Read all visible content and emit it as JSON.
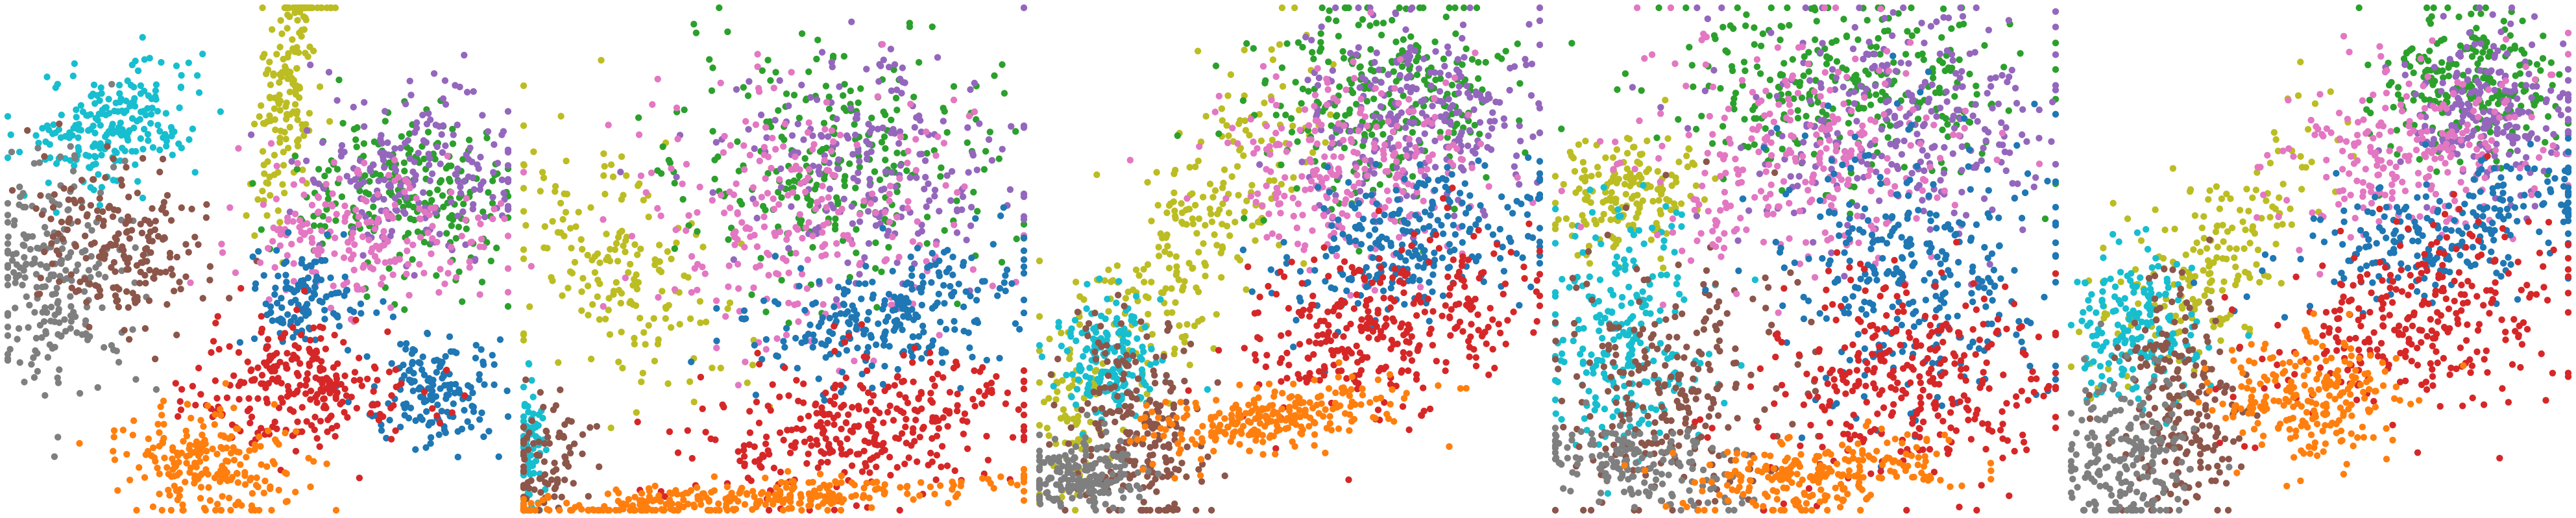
{
  "palette": {
    "c0": "#1f77b4",
    "c1": "#ff7f0e",
    "c2": "#2ca02c",
    "c3": "#d62728",
    "c4": "#9467bd",
    "c5": "#8c564b",
    "c6": "#e377c2",
    "c7": "#7f7f7f",
    "c8": "#bcbd22",
    "c9": "#17becf"
  },
  "chart_data": [
    {
      "type": "scatter",
      "axes_visible": false,
      "legend": "none",
      "xlim": [
        0,
        100
      ],
      "ylim": [
        0,
        100
      ],
      "clusters": [
        {
          "color_key": "c9",
          "center": [
            22,
            77
          ],
          "spread": [
            9,
            6
          ],
          "count": 220,
          "angle": 25
        },
        {
          "color_key": "c7",
          "center": [
            10,
            45
          ],
          "spread": [
            7,
            12
          ],
          "count": 230,
          "angle": 0
        },
        {
          "color_key": "c5",
          "center": [
            23,
            53
          ],
          "spread": [
            9,
            8
          ],
          "count": 200,
          "angle": -20
        },
        {
          "color_key": "c8",
          "center": [
            56,
            84
          ],
          "spread": [
            3,
            14
          ],
          "count": 170,
          "angle": -5
        },
        {
          "color_key": "c2",
          "center": [
            80,
            62
          ],
          "spread": [
            13,
            9
          ],
          "count": 230,
          "angle": 0
        },
        {
          "color_key": "c4",
          "center": [
            82,
            68
          ],
          "spread": [
            11,
            9
          ],
          "count": 200,
          "angle": 0
        },
        {
          "color_key": "c6",
          "center": [
            72,
            55
          ],
          "spread": [
            13,
            7
          ],
          "count": 200,
          "angle": 0
        },
        {
          "color_key": "c0",
          "center": [
            60,
            42
          ],
          "spread": [
            6,
            5
          ],
          "count": 120,
          "angle": 0
        },
        {
          "color_key": "c0",
          "center": [
            86,
            24
          ],
          "spread": [
            7,
            5
          ],
          "count": 160,
          "angle": 0
        },
        {
          "color_key": "c3",
          "center": [
            58,
            25
          ],
          "spread": [
            11,
            6
          ],
          "count": 260,
          "angle": 0
        },
        {
          "color_key": "c1",
          "center": [
            40,
            9
          ],
          "spread": [
            9,
            6
          ],
          "count": 220,
          "angle": -10
        }
      ]
    },
    {
      "type": "scatter",
      "axes_visible": false,
      "legend": "none",
      "xlim": [
        0,
        100
      ],
      "ylim": [
        0,
        100
      ],
      "clusters": [
        {
          "color_key": "c8",
          "center": [
            18,
            50
          ],
          "spread": [
            9,
            14
          ],
          "count": 180,
          "angle": 35
        },
        {
          "color_key": "c9",
          "center": [
            1,
            11
          ],
          "spread": [
            1.5,
            7
          ],
          "count": 80,
          "angle": 0
        },
        {
          "color_key": "c5",
          "center": [
            5,
            10
          ],
          "spread": [
            4,
            6
          ],
          "count": 90,
          "angle": 0
        },
        {
          "color_key": "c2",
          "center": [
            64,
            70
          ],
          "spread": [
            16,
            12
          ],
          "count": 260,
          "angle": 10
        },
        {
          "color_key": "c4",
          "center": [
            72,
            70
          ],
          "spread": [
            14,
            12
          ],
          "count": 220,
          "angle": 10
        },
        {
          "color_key": "c6",
          "center": [
            56,
            57
          ],
          "spread": [
            17,
            13
          ],
          "count": 260,
          "angle": 15
        },
        {
          "color_key": "c0",
          "center": [
            72,
            39
          ],
          "spread": [
            16,
            6
          ],
          "count": 260,
          "angle": 15
        },
        {
          "color_key": "c3",
          "center": [
            67,
            17
          ],
          "spread": [
            18,
            7
          ],
          "count": 330,
          "angle": 12
        },
        {
          "color_key": "c1",
          "center": [
            42,
            2
          ],
          "spread": [
            28,
            1.8
          ],
          "count": 300,
          "angle": 3
        }
      ]
    },
    {
      "type": "scatter",
      "axes_visible": false,
      "legend": "none",
      "xlim": [
        0,
        100
      ],
      "ylim": [
        0,
        100
      ],
      "clusters": [
        {
          "color_key": "c8",
          "center": [
            30,
            55
          ],
          "spread": [
            8,
            20
          ],
          "count": 260,
          "angle": -35
        },
        {
          "color_key": "c8",
          "center": [
            7,
            18
          ],
          "spread": [
            3,
            8
          ],
          "count": 60,
          "angle": 0
        },
        {
          "color_key": "c9",
          "center": [
            14,
            30
          ],
          "spread": [
            5,
            6
          ],
          "count": 170,
          "angle": 0
        },
        {
          "color_key": "c5",
          "center": [
            20,
            15
          ],
          "spread": [
            6,
            11
          ],
          "count": 230,
          "angle": 10
        },
        {
          "color_key": "c7",
          "center": [
            9,
            7
          ],
          "spread": [
            6,
            4
          ],
          "count": 180,
          "angle": 0
        },
        {
          "color_key": "c2",
          "center": [
            68,
            82
          ],
          "spread": [
            13,
            10
          ],
          "count": 280,
          "angle": 10
        },
        {
          "color_key": "c4",
          "center": [
            76,
            78
          ],
          "spread": [
            12,
            10
          ],
          "count": 260,
          "angle": 10
        },
        {
          "color_key": "c6",
          "center": [
            62,
            67
          ],
          "spread": [
            14,
            10
          ],
          "count": 260,
          "angle": 10
        },
        {
          "color_key": "c0",
          "center": [
            76,
            53
          ],
          "spread": [
            14,
            7
          ],
          "count": 260,
          "angle": 15
        },
        {
          "color_key": "c3",
          "center": [
            70,
            36
          ],
          "spread": [
            15,
            8
          ],
          "count": 320,
          "angle": 15
        },
        {
          "color_key": "c1",
          "center": [
            47,
            18
          ],
          "spread": [
            13,
            3
          ],
          "count": 250,
          "angle": 8
        }
      ]
    },
    {
      "type": "scatter",
      "axes_visible": false,
      "legend": "none",
      "xlim": [
        0,
        100
      ],
      "ylim": [
        0,
        100
      ],
      "clusters": [
        {
          "color_key": "c8",
          "center": [
            15,
            62
          ],
          "spread": [
            7,
            6
          ],
          "count": 170,
          "angle": 20
        },
        {
          "color_key": "c9",
          "center": [
            14,
            35
          ],
          "spread": [
            8,
            12
          ],
          "count": 240,
          "angle": 0
        },
        {
          "color_key": "c5",
          "center": [
            24,
            25
          ],
          "spread": [
            10,
            14
          ],
          "count": 260,
          "angle": -20
        },
        {
          "color_key": "c7",
          "center": [
            16,
            9
          ],
          "spread": [
            10,
            4
          ],
          "count": 170,
          "angle": -10
        },
        {
          "color_key": "c2",
          "center": [
            57,
            84
          ],
          "spread": [
            18,
            10
          ],
          "count": 300,
          "angle": 0
        },
        {
          "color_key": "c4",
          "center": [
            70,
            78
          ],
          "spread": [
            16,
            12
          ],
          "count": 280,
          "angle": 0
        },
        {
          "color_key": "c6",
          "center": [
            48,
            70
          ],
          "spread": [
            16,
            12
          ],
          "count": 280,
          "angle": 0
        },
        {
          "color_key": "c0",
          "center": [
            72,
            47
          ],
          "spread": [
            14,
            14
          ],
          "count": 320,
          "angle": 0
        },
        {
          "color_key": "c3",
          "center": [
            72,
            25
          ],
          "spread": [
            14,
            10
          ],
          "count": 330,
          "angle": 0
        },
        {
          "color_key": "c1",
          "center": [
            54,
            7
          ],
          "spread": [
            13,
            4
          ],
          "count": 240,
          "angle": 5
        }
      ]
    },
    {
      "type": "scatter",
      "axes_visible": false,
      "legend": "none",
      "xlim": [
        0,
        100
      ],
      "ylim": [
        0,
        100
      ],
      "clusters": [
        {
          "color_key": "c8",
          "center": [
            28,
            50
          ],
          "spread": [
            7,
            15
          ],
          "count": 200,
          "angle": -40
        },
        {
          "color_key": "c9",
          "center": [
            13,
            36
          ],
          "spread": [
            6,
            7
          ],
          "count": 180,
          "angle": 0
        },
        {
          "color_key": "c5",
          "center": [
            22,
            20
          ],
          "spread": [
            6,
            12
          ],
          "count": 220,
          "angle": 0
        },
        {
          "color_key": "c7",
          "center": [
            12,
            11
          ],
          "spread": [
            6,
            8
          ],
          "count": 200,
          "angle": 0
        },
        {
          "color_key": "c2",
          "center": [
            80,
            85
          ],
          "spread": [
            9,
            8
          ],
          "count": 240,
          "angle": 0
        },
        {
          "color_key": "c4",
          "center": [
            84,
            80
          ],
          "spread": [
            8,
            8
          ],
          "count": 220,
          "angle": 0
        },
        {
          "color_key": "c6",
          "center": [
            70,
            72
          ],
          "spread": [
            14,
            8
          ],
          "count": 240,
          "angle": 10
        },
        {
          "color_key": "c0",
          "center": [
            78,
            56
          ],
          "spread": [
            16,
            6
          ],
          "count": 260,
          "angle": 15
        },
        {
          "color_key": "c3",
          "center": [
            70,
            38
          ],
          "spread": [
            16,
            9
          ],
          "count": 300,
          "angle": 15
        },
        {
          "color_key": "c1",
          "center": [
            48,
            22
          ],
          "spread": [
            9,
            6
          ],
          "count": 230,
          "angle": 0
        }
      ]
    }
  ]
}
